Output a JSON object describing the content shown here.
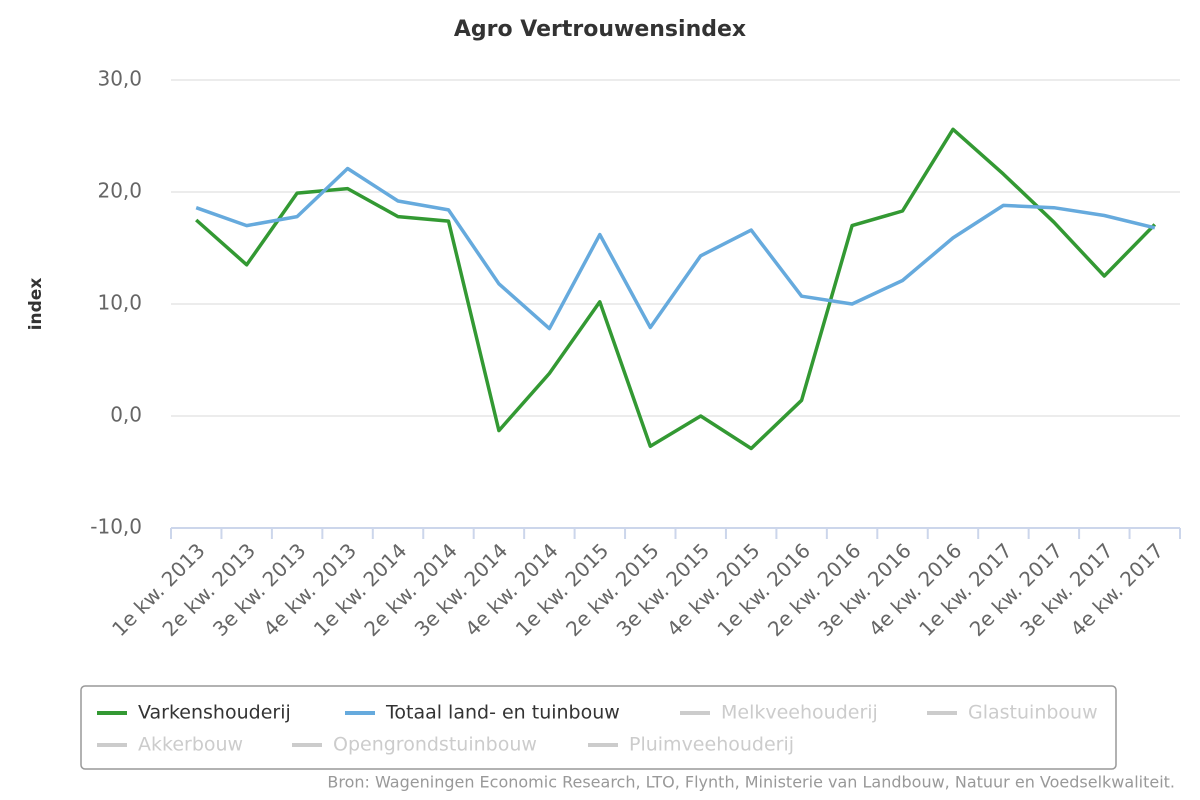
{
  "chart_data": {
    "type": "line",
    "title": "Agro Vertrouwensindex",
    "y_label": "index",
    "categories": [
      "1e kw. 2013",
      "2e kw. 2013",
      "3e kw. 2013",
      "4e kw. 2013",
      "1e kw. 2014",
      "2e kw. 2014",
      "3e kw. 2014",
      "4e kw. 2014",
      "1e kw. 2015",
      "2e kw. 2015",
      "3e kw. 2015",
      "4e kw. 2015",
      "1e kw. 2016",
      "2e kw. 2016",
      "3e kw. 2016",
      "4e kw. 2016",
      "1e kw. 2017",
      "2e kw. 2017",
      "3e kw. 2017",
      "4e kw. 2017"
    ],
    "series": [
      {
        "name": "Varkenshouderij",
        "color": "#339933",
        "values": [
          17.5,
          13.5,
          19.9,
          20.3,
          17.8,
          17.4,
          -1.3,
          3.8,
          10.2,
          -2.7,
          0.0,
          -2.9,
          1.4,
          17.0,
          18.3,
          25.6,
          21.6,
          17.3,
          12.5,
          17.1
        ]
      },
      {
        "name": "Totaal land- en tuinbouw",
        "color": "#66aadd",
        "values": [
          18.6,
          17.0,
          17.8,
          22.1,
          19.2,
          18.4,
          11.8,
          7.8,
          16.2,
          7.9,
          14.3,
          16.6,
          10.7,
          10.0,
          12.1,
          15.9,
          18.8,
          18.6,
          17.9,
          16.8
        ]
      }
    ],
    "hidden_series": [
      "Melkveehouderij",
      "Glastuinbouw",
      "Akkerbouw",
      "Opengrondstuinbouw",
      "Pluimveehouderij"
    ],
    "ylim": [
      -10,
      30
    ],
    "yticks": [
      {
        "value": -10,
        "label": "-10,0"
      },
      {
        "value": 0,
        "label": "0,0"
      },
      {
        "value": 10,
        "label": "10,0"
      },
      {
        "value": 20,
        "label": "20,0"
      },
      {
        "value": 30,
        "label": "30,0"
      }
    ],
    "grid": true,
    "source": "Bron: Wageningen Economic Research, LTO, Flynth, Ministerie van Landbouw, Natuur en Voedselkwaliteit."
  }
}
